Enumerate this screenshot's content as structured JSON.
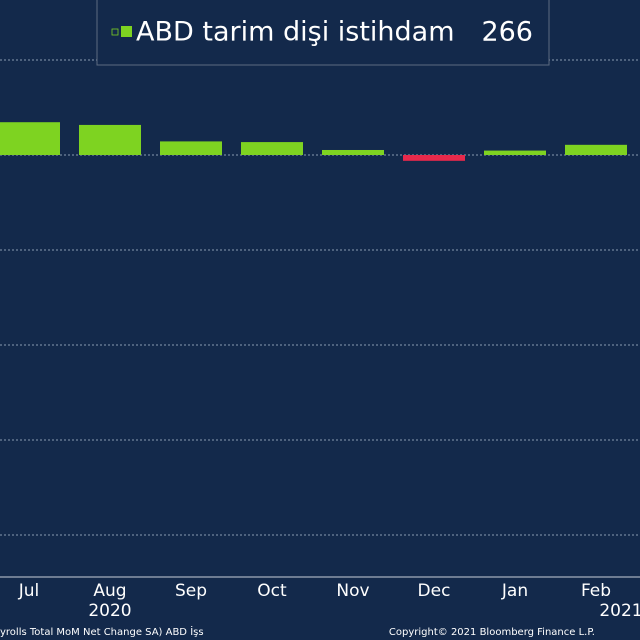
{
  "chart_data": {
    "type": "bar",
    "categories": [
      "Jul",
      "Aug",
      "Sep",
      "Oct",
      "Nov",
      "Dec",
      "Jan",
      "Feb"
    ],
    "years": [
      "2020",
      "2021"
    ],
    "series": [
      {
        "name": "ABD tarim dişi istihdam",
        "color": "#7ed321",
        "negative_color": "#e8294b",
        "values": [
          1726,
          1583,
          716,
          680,
          264,
          -306,
          233,
          536
        ],
        "last_value": 266
      }
    ],
    "ylim": [
      -22210,
      8158
    ],
    "yticks": [
      -20000,
      -15000,
      -10000,
      -5000,
      0,
      5000
    ],
    "grid": true,
    "source": "yrolls Total MoM Net Change SA) ABD İşs",
    "copyright": "Copyright© 2021 Bloomberg Finance L.P."
  }
}
